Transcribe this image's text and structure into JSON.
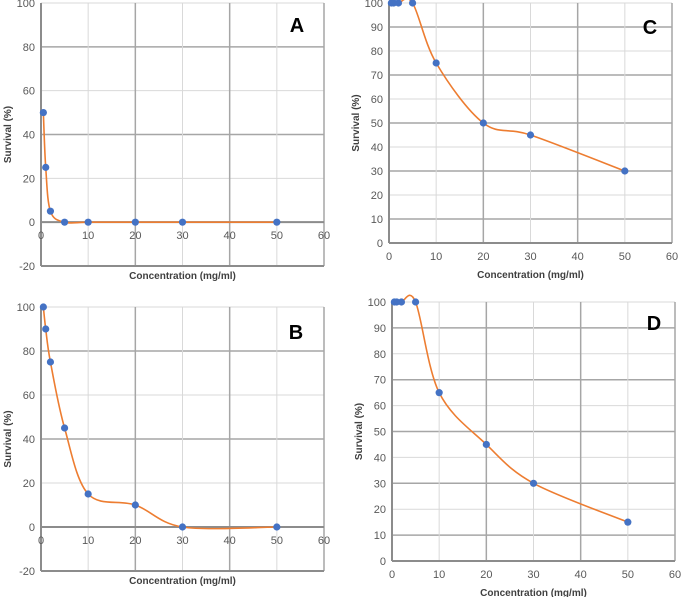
{
  "colors": {
    "line": "#ed7d31",
    "marker": "#4472c4",
    "background": "#ffffff"
  },
  "chart_data": [
    {
      "type": "line",
      "panel_label": "A",
      "xlabel": "Concentration (mg/ml)",
      "ylabel": "Survival (%)",
      "xlim": [
        0,
        60
      ],
      "ylim": [
        -20,
        100
      ],
      "xticks": [
        0,
        10,
        20,
        30,
        40,
        50,
        60
      ],
      "yticks": [
        -20,
        0,
        20,
        40,
        60,
        80,
        100
      ],
      "x": [
        0.5,
        1,
        2,
        5,
        10,
        20,
        30,
        50
      ],
      "y": [
        50,
        25,
        5,
        0,
        0,
        0,
        0,
        0
      ],
      "grid": true,
      "smooth": true
    },
    {
      "type": "line",
      "panel_label": "C",
      "xlabel": "Concentration (mg/ml)",
      "ylabel": "Survival (%)",
      "xlim": [
        0,
        60
      ],
      "ylim": [
        0,
        100
      ],
      "xticks": [
        0,
        10,
        20,
        30,
        40,
        50,
        60
      ],
      "yticks": [
        0,
        10,
        20,
        30,
        40,
        50,
        60,
        70,
        80,
        90,
        100
      ],
      "x": [
        0.5,
        1,
        2,
        5,
        10,
        20,
        30,
        50
      ],
      "y": [
        100,
        100,
        100,
        100,
        75,
        50,
        45,
        30
      ],
      "grid": true,
      "smooth": true
    },
    {
      "type": "line",
      "panel_label": "B",
      "xlabel": "Concentration (mg/ml)",
      "ylabel": "Survival (%)",
      "xlim": [
        0,
        60
      ],
      "ylim": [
        -20,
        100
      ],
      "xticks": [
        0,
        10,
        20,
        30,
        40,
        50,
        60
      ],
      "yticks": [
        -20,
        0,
        20,
        40,
        60,
        80,
        100
      ],
      "x": [
        0.5,
        1,
        2,
        5,
        10,
        20,
        30,
        50
      ],
      "y": [
        100,
        90,
        75,
        45,
        15,
        10,
        0,
        0
      ],
      "grid": true,
      "smooth": true
    },
    {
      "type": "line",
      "panel_label": "D",
      "xlabel": "Concentration (mg/ml)",
      "ylabel": "Survival (%)",
      "xlim": [
        0,
        60
      ],
      "ylim": [
        0,
        100
      ],
      "xticks": [
        0,
        10,
        20,
        30,
        40,
        50,
        60
      ],
      "yticks": [
        0,
        10,
        20,
        30,
        40,
        50,
        60,
        70,
        80,
        90,
        100
      ],
      "x": [
        0.5,
        1,
        2,
        5,
        10,
        20,
        30,
        50
      ],
      "y": [
        100,
        100,
        100,
        100,
        65,
        45,
        30,
        15
      ],
      "grid": true,
      "smooth": true
    }
  ]
}
